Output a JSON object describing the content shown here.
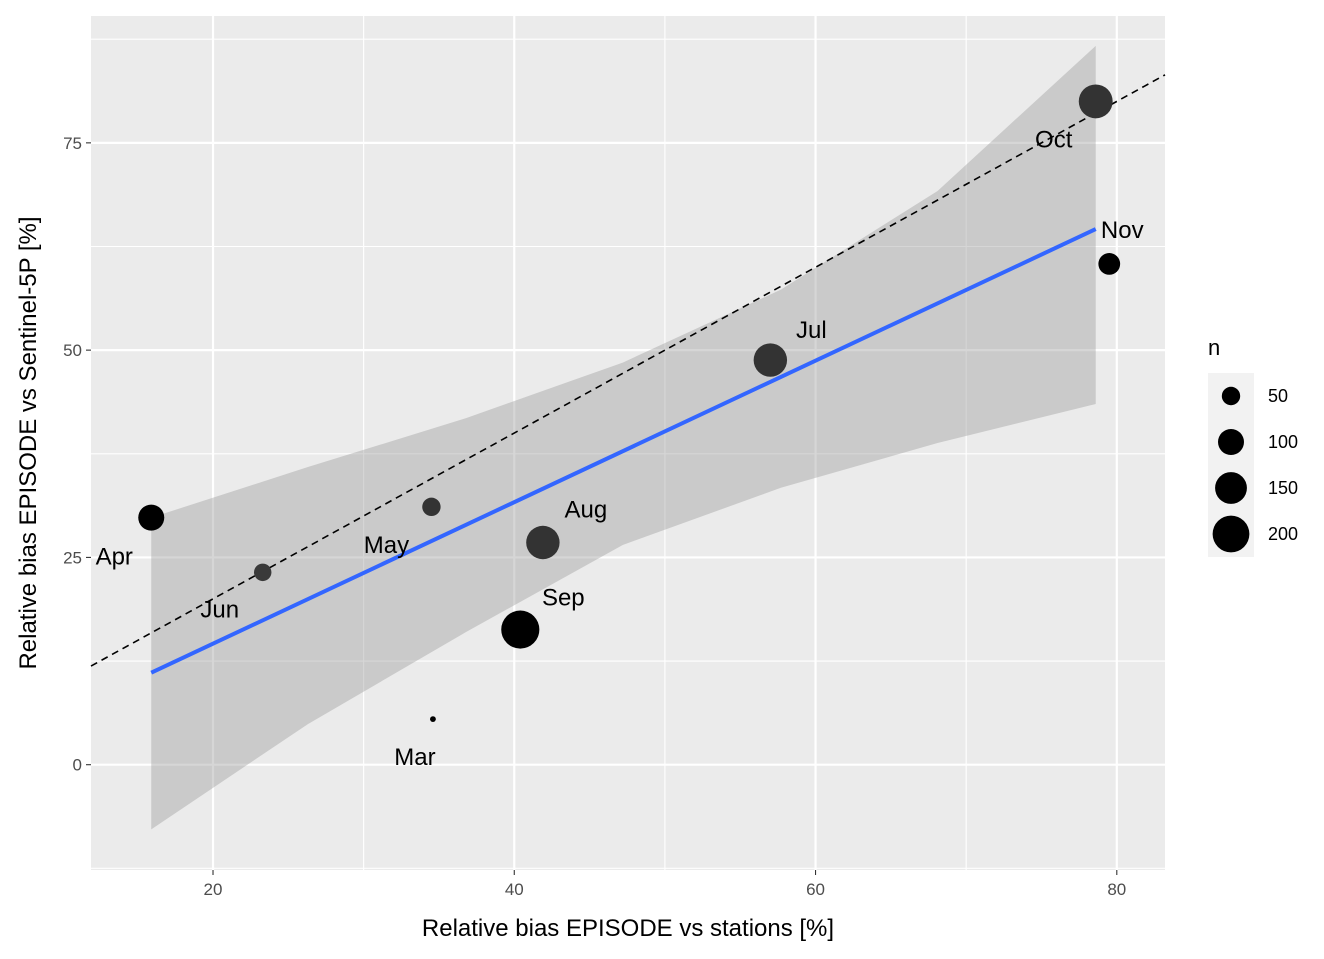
{
  "chart_data": {
    "type": "scatter",
    "title": "",
    "xlabel": "Relative bias EPISODE vs stations [%]",
    "ylabel": "Relative bias EPISODE vs Sentinel-5P [%]",
    "xlim": [
      11.9,
      83.2
    ],
    "ylim": [
      -12.7,
      90.3
    ],
    "x_ticks": [
      20,
      40,
      60,
      80
    ],
    "y_ticks": [
      0,
      25,
      50,
      75
    ],
    "x_tick_labels": [
      "20",
      "40",
      "60",
      "80"
    ],
    "y_tick_labels": [
      "0",
      "25",
      "50",
      "75"
    ],
    "grid": true,
    "points": [
      {
        "label": "Mar",
        "x": 34.6,
        "y": 5.5,
        "n": 5,
        "color": "#000000"
      },
      {
        "label": "Apr",
        "x": 15.9,
        "y": 29.8,
        "n": 100,
        "color": "#000000"
      },
      {
        "label": "May",
        "x": 34.5,
        "y": 31.1,
        "n": 50,
        "color": "#333333"
      },
      {
        "label": "Jun",
        "x": 23.3,
        "y": 23.2,
        "n": 45,
        "color": "#3a3a3a"
      },
      {
        "label": "Jul",
        "x": 57.0,
        "y": 48.8,
        "n": 165,
        "color": "#333333"
      },
      {
        "label": "Aug",
        "x": 41.9,
        "y": 26.8,
        "n": 165,
        "color": "#333333"
      },
      {
        "label": "Sep",
        "x": 40.4,
        "y": 16.3,
        "n": 215,
        "color": "#000000"
      },
      {
        "label": "Oct",
        "x": 78.6,
        "y": 80.0,
        "n": 170,
        "color": "#333333"
      },
      {
        "label": "Nov",
        "x": 79.5,
        "y": 60.4,
        "n": 70,
        "color": "#000000"
      }
    ],
    "identity_line": {
      "slope": 1,
      "intercept": 0,
      "style": "dashed",
      "color": "#000000"
    },
    "regression": {
      "x": [
        15.9,
        78.6
      ],
      "y": [
        11.1,
        64.6
      ],
      "color": "#3366ff",
      "ci_upper": [
        [
          15.9,
          29.8
        ],
        [
          26.3,
          35.9
        ],
        [
          36.8,
          41.8
        ],
        [
          47.2,
          48.5
        ],
        [
          57.7,
          57.3
        ],
        [
          68.1,
          69.2
        ],
        [
          78.6,
          86.7
        ]
      ],
      "ci_lower": [
        [
          15.9,
          -7.8
        ],
        [
          26.3,
          4.9
        ],
        [
          36.8,
          16.0
        ],
        [
          47.2,
          26.5
        ],
        [
          57.7,
          33.4
        ],
        [
          68.1,
          38.8
        ],
        [
          78.6,
          43.5
        ]
      ],
      "ci_fill": "#999999"
    },
    "legend": {
      "title": "n",
      "placement": "right",
      "entries": [
        {
          "label": "50",
          "n": 50
        },
        {
          "label": "100",
          "n": 100
        },
        {
          "label": "150",
          "n": 150
        },
        {
          "label": "200",
          "n": 200
        }
      ]
    },
    "panel_background": "#ebebeb",
    "grid_color": "#ffffff"
  }
}
